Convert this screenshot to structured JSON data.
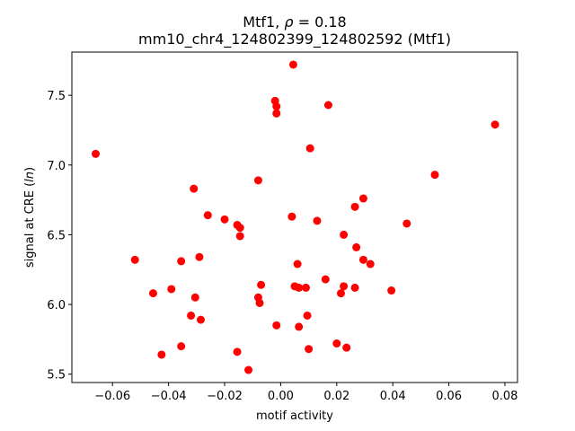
{
  "chart_data": {
    "type": "scatter",
    "title_line1_prefix": "Mtf1, ",
    "title_line1_symbol": "ρ",
    "title_line1_suffix": " = 0.18",
    "title_line2": "mm10_chr4_124802399_124802592 (Mtf1)",
    "xlabel": "motif activity",
    "ylabel_prefix": "signal at CRE (",
    "ylabel_italic": "ln",
    "ylabel_suffix": ")",
    "xlim": [
      -0.0745,
      0.0845
    ],
    "ylim": [
      5.44,
      7.81
    ],
    "xticks": [
      -0.06,
      -0.04,
      -0.02,
      0.0,
      0.02,
      0.04,
      0.06,
      0.08
    ],
    "xtick_labels": [
      "−0.06",
      "−0.04",
      "−0.02",
      "0.00",
      "0.02",
      "0.04",
      "0.06",
      "0.08"
    ],
    "yticks": [
      5.5,
      6.0,
      6.5,
      7.0,
      7.5
    ],
    "ytick_labels": [
      "5.5",
      "6.0",
      "6.5",
      "7.0",
      "7.5"
    ],
    "grid": false,
    "marker_color": "#ff0000",
    "points": [
      {
        "x": 0.0045,
        "y": 7.72
      },
      {
        "x": -0.002,
        "y": 7.46
      },
      {
        "x": -0.0015,
        "y": 7.42
      },
      {
        "x": -0.0015,
        "y": 7.37
      },
      {
        "x": 0.017,
        "y": 7.43
      },
      {
        "x": 0.0765,
        "y": 7.29
      },
      {
        "x": 0.0105,
        "y": 7.12
      },
      {
        "x": -0.066,
        "y": 7.08
      },
      {
        "x": 0.055,
        "y": 6.93
      },
      {
        "x": -0.008,
        "y": 6.89
      },
      {
        "x": -0.031,
        "y": 6.83
      },
      {
        "x": 0.0295,
        "y": 6.76
      },
      {
        "x": 0.0265,
        "y": 6.7
      },
      {
        "x": -0.026,
        "y": 6.64
      },
      {
        "x": 0.004,
        "y": 6.63
      },
      {
        "x": -0.02,
        "y": 6.61
      },
      {
        "x": 0.013,
        "y": 6.6
      },
      {
        "x": 0.045,
        "y": 6.58
      },
      {
        "x": -0.0155,
        "y": 6.57
      },
      {
        "x": -0.0145,
        "y": 6.55
      },
      {
        "x": -0.0145,
        "y": 6.49
      },
      {
        "x": 0.0225,
        "y": 6.5
      },
      {
        "x": 0.027,
        "y": 6.41
      },
      {
        "x": -0.029,
        "y": 6.34
      },
      {
        "x": -0.052,
        "y": 6.32
      },
      {
        "x": -0.0355,
        "y": 6.31
      },
      {
        "x": 0.0295,
        "y": 6.32
      },
      {
        "x": 0.032,
        "y": 6.29
      },
      {
        "x": 0.006,
        "y": 6.29
      },
      {
        "x": 0.016,
        "y": 6.18
      },
      {
        "x": -0.007,
        "y": 6.14
      },
      {
        "x": 0.005,
        "y": 6.13
      },
      {
        "x": 0.0065,
        "y": 6.12
      },
      {
        "x": 0.009,
        "y": 6.12
      },
      {
        "x": 0.0225,
        "y": 6.13
      },
      {
        "x": 0.0265,
        "y": 6.12
      },
      {
        "x": -0.039,
        "y": 6.11
      },
      {
        "x": 0.0395,
        "y": 6.1
      },
      {
        "x": 0.0215,
        "y": 6.08
      },
      {
        "x": -0.0455,
        "y": 6.08
      },
      {
        "x": -0.0305,
        "y": 6.05
      },
      {
        "x": -0.008,
        "y": 6.05
      },
      {
        "x": -0.0075,
        "y": 6.01
      },
      {
        "x": -0.032,
        "y": 5.92
      },
      {
        "x": 0.0095,
        "y": 5.92
      },
      {
        "x": -0.0285,
        "y": 5.89
      },
      {
        "x": -0.0015,
        "y": 5.85
      },
      {
        "x": 0.0065,
        "y": 5.84
      },
      {
        "x": 0.02,
        "y": 5.72
      },
      {
        "x": -0.0355,
        "y": 5.7
      },
      {
        "x": 0.0235,
        "y": 5.69
      },
      {
        "x": 0.01,
        "y": 5.68
      },
      {
        "x": -0.0155,
        "y": 5.66
      },
      {
        "x": -0.0425,
        "y": 5.64
      },
      {
        "x": -0.0115,
        "y": 5.53
      }
    ]
  }
}
